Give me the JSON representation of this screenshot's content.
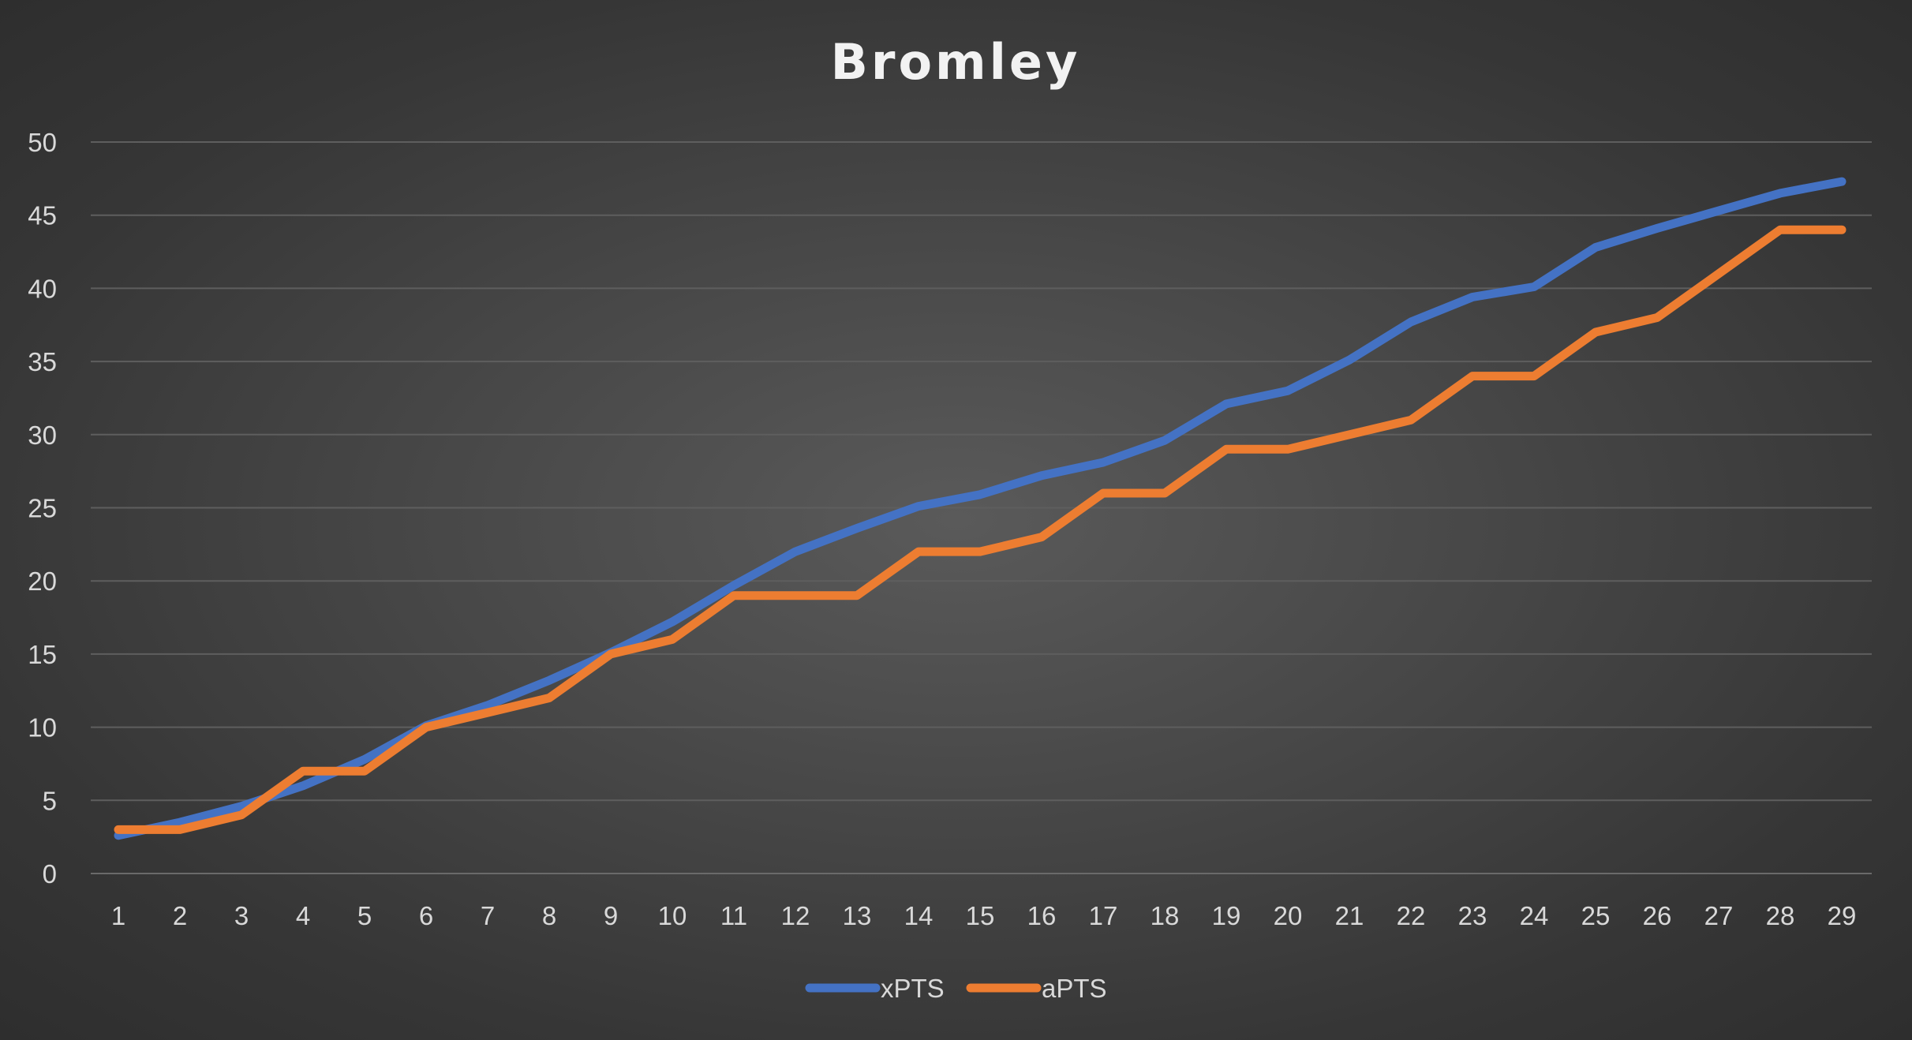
{
  "chart_data": {
    "type": "line",
    "title": "Bromley",
    "xlabel": "",
    "ylabel": "",
    "categories": [
      "1",
      "2",
      "3",
      "4",
      "5",
      "6",
      "7",
      "8",
      "9",
      "10",
      "11",
      "12",
      "13",
      "14",
      "15",
      "16",
      "17",
      "18",
      "19",
      "20",
      "21",
      "22",
      "23",
      "24",
      "25",
      "26",
      "27",
      "28",
      "29"
    ],
    "ylim": [
      0,
      50
    ],
    "yticks": [
      0,
      5,
      10,
      15,
      20,
      25,
      30,
      35,
      40,
      45,
      50
    ],
    "grid": "horizontal",
    "legend": "bottom-center",
    "series": [
      {
        "name": "xPTS",
        "color": "#4472c4",
        "values": [
          2.6,
          3.5,
          4.6,
          6.0,
          7.8,
          10.1,
          11.5,
          13.2,
          15.1,
          17.2,
          19.7,
          22.0,
          23.6,
          25.1,
          25.9,
          27.2,
          28.1,
          29.6,
          32.1,
          33.0,
          35.1,
          37.7,
          39.4,
          40.1,
          42.8,
          44.1,
          45.3,
          46.5,
          47.3
        ]
      },
      {
        "name": "aPTS",
        "color": "#ed7d31",
        "values": [
          3,
          3,
          4,
          7,
          7,
          10,
          11,
          12,
          15,
          16,
          19,
          19,
          19,
          22,
          22,
          23,
          26,
          26,
          29,
          29,
          30,
          31,
          34,
          34,
          37,
          38,
          41,
          44,
          44
        ]
      }
    ]
  }
}
